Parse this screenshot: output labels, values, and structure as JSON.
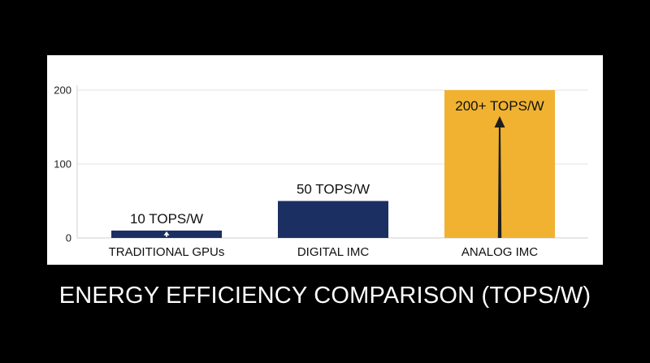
{
  "caption": "ENERGY EFFICIENCY COMPARISON (TOPS/W)",
  "colors": {
    "page_background": "#000000",
    "panel_background": "#ffffff",
    "gridline": "#e3e3e3",
    "axis": "#cfcfcf",
    "text": "#111111"
  },
  "chart_data": {
    "type": "bar",
    "title": "",
    "xlabel": "",
    "ylabel": "",
    "ylim": [
      0,
      200
    ],
    "yticks": [
      0,
      100,
      200
    ],
    "grid": true,
    "legend": "none",
    "categories": [
      "TRADITIONAL GPUs",
      "DIGITAL IMC",
      "ANALOG IMC"
    ],
    "values": [
      10,
      50,
      200
    ],
    "data_labels": [
      "10 TOPS/W",
      "50 TOPS/W",
      "200+ TOPS/W"
    ],
    "bar_colors": [
      "#1c2f63",
      "#1c2f63",
      "#f0b230"
    ],
    "annotations": [
      {
        "category": "TRADITIONAL GPUs",
        "type": "up-arrow",
        "color": "#ffffff"
      },
      {
        "category": "ANALOG IMC",
        "type": "up-arrow",
        "color": "#1e1e1e"
      }
    ]
  }
}
